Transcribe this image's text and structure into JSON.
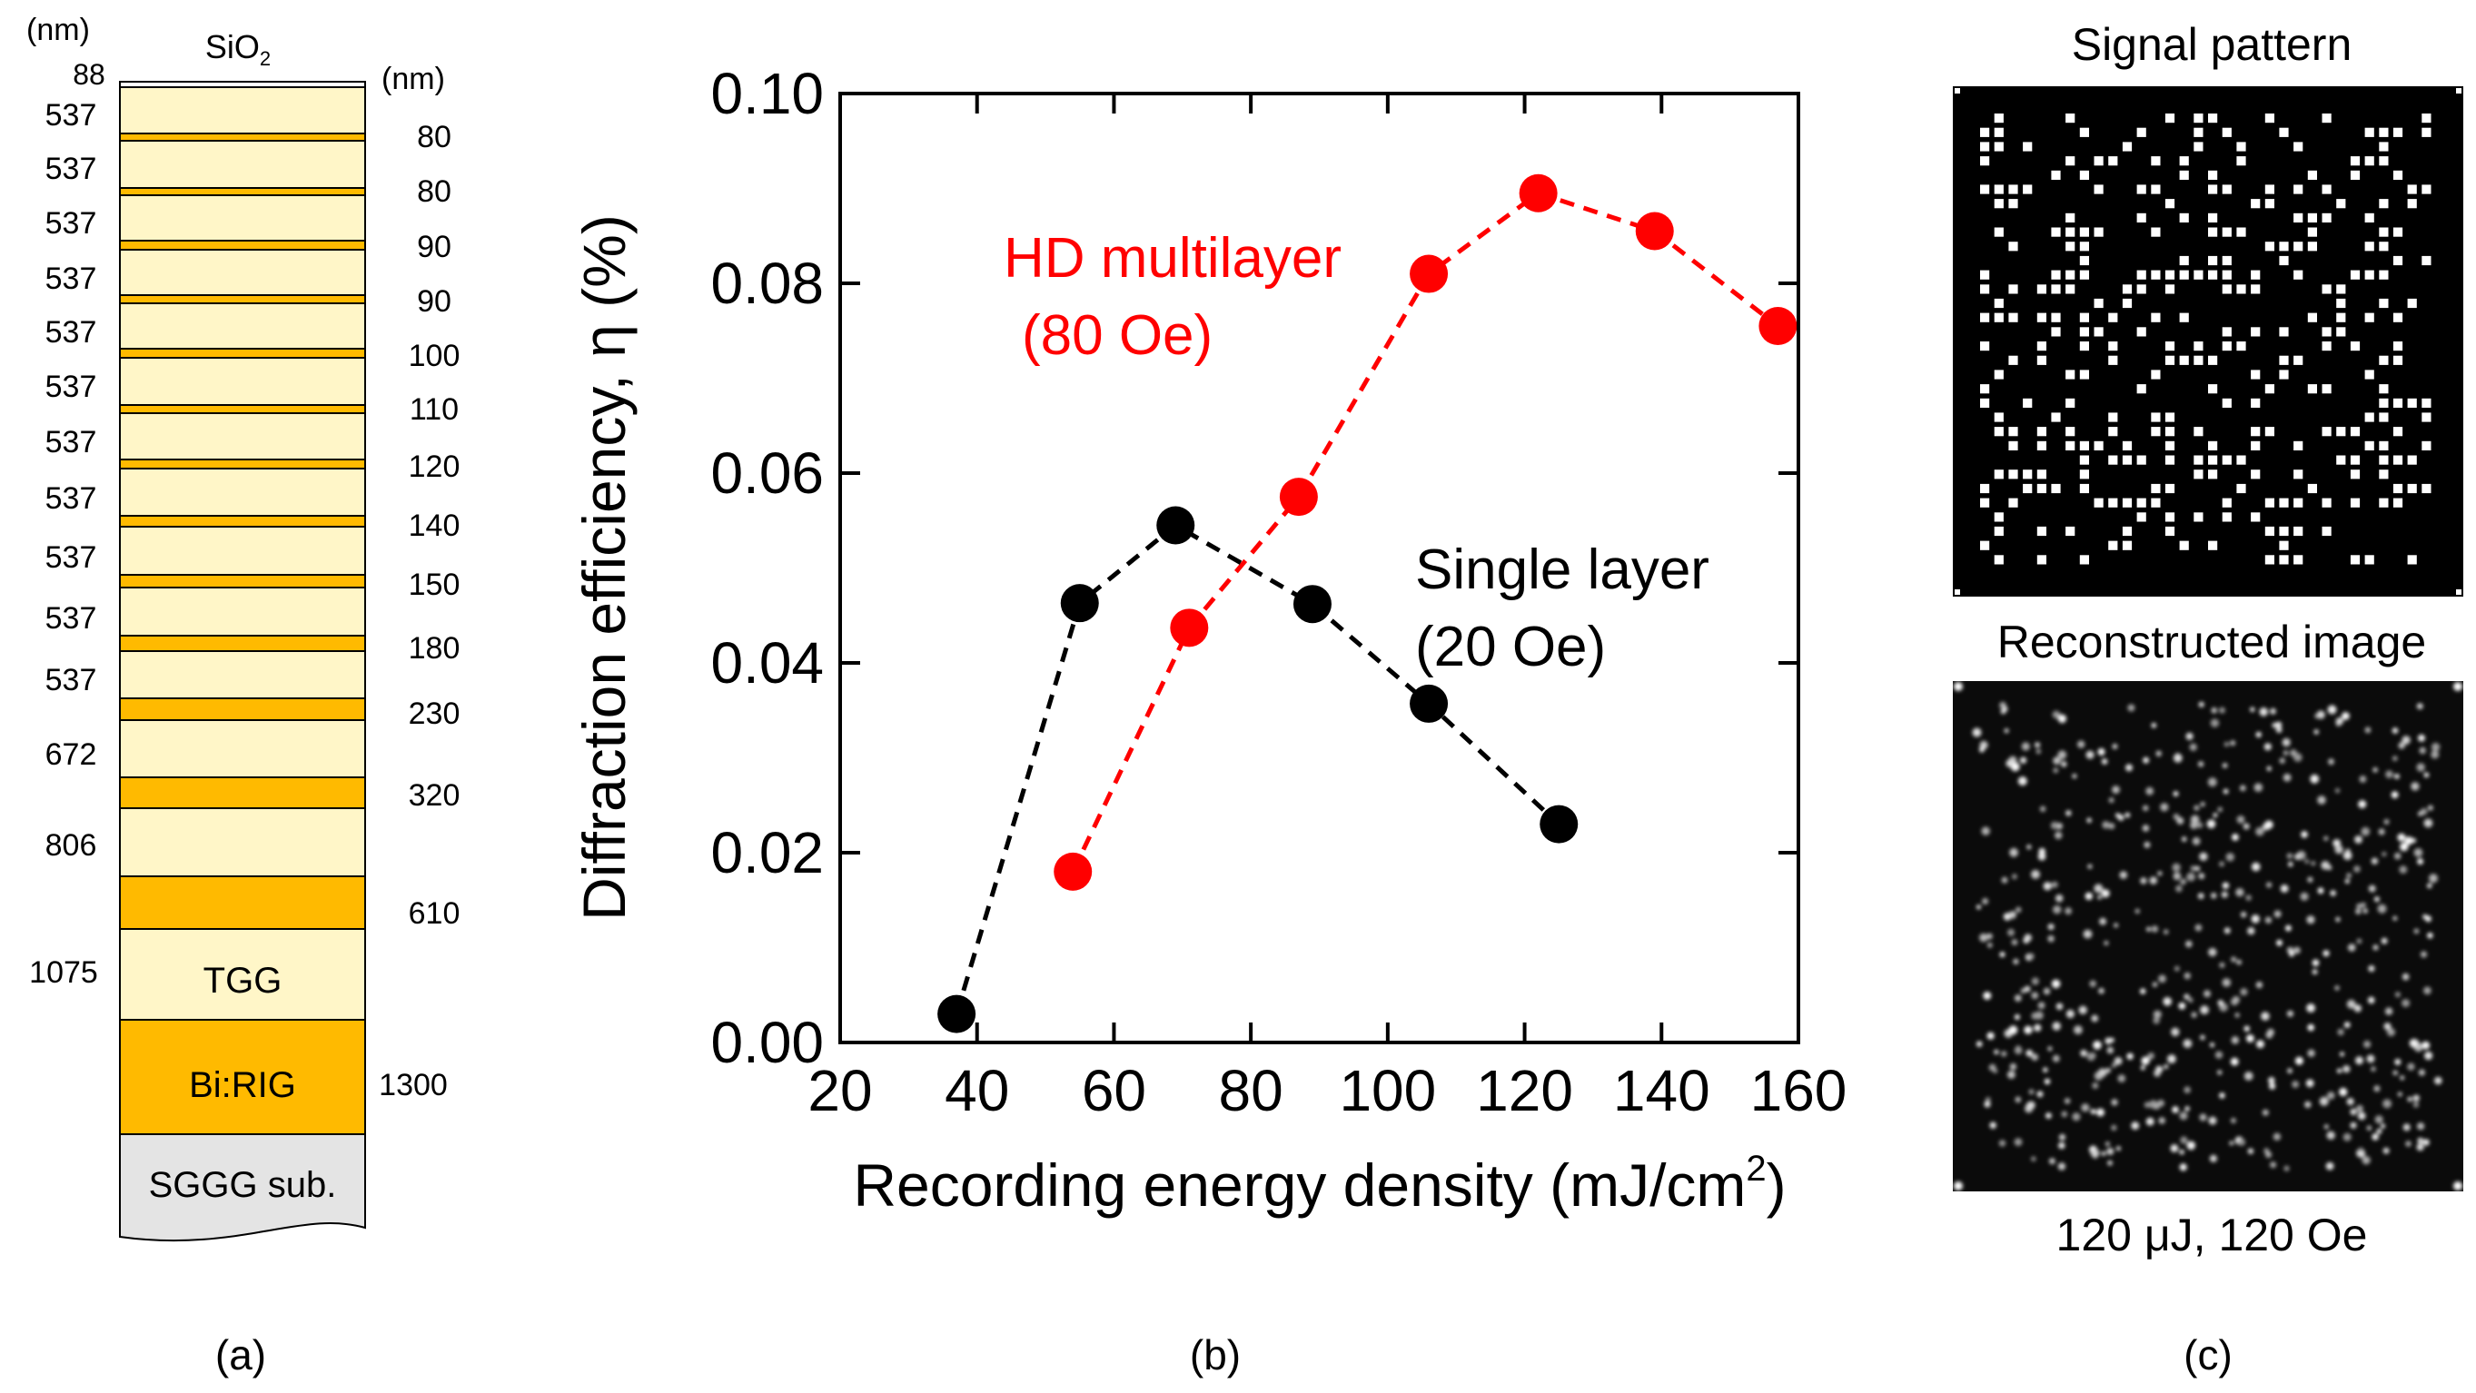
{
  "panel_a": {
    "left_unit": "(nm)",
    "right_unit": "(nm)",
    "top_layer": "SiO",
    "top_layer_sub": "2",
    "top_thickness": "88",
    "stack": [
      {
        "tgg": "537",
        "big": "80"
      },
      {
        "tgg": "537",
        "big": "80"
      },
      {
        "tgg": "537",
        "big": "90"
      },
      {
        "tgg": "537",
        "big": "90"
      },
      {
        "tgg": "537",
        "big": "100"
      },
      {
        "tgg": "537",
        "big": "110"
      },
      {
        "tgg": "537",
        "big": "120"
      },
      {
        "tgg": "537",
        "big": "140"
      },
      {
        "tgg": "537",
        "big": "150"
      },
      {
        "tgg": "537",
        "big": "180"
      },
      {
        "tgg": "537",
        "big": "230"
      },
      {
        "tgg": "672",
        "big": "320"
      },
      {
        "tgg": "806",
        "big": "610"
      }
    ],
    "tgg_label": "TGG",
    "tgg_thickness": "1075",
    "rig_label": "Bi:RIG",
    "rig_thickness": "1300",
    "substrate_label": "SGGG sub.",
    "caption": "(a)",
    "colors": {
      "tgg": "#fff6c8",
      "rig": "#ffba00",
      "substrate": "#e4e4e4"
    }
  },
  "chart_data": {
    "type": "scatter",
    "title": "",
    "xlabel": "Recording energy density (mJ/cm",
    "xlabel_sup": "2",
    "xlabel_end": ")",
    "ylabel": "Diffraction efficiency, η (%)",
    "xlim": [
      20,
      160
    ],
    "ylim": [
      0,
      0.1
    ],
    "xticks": [
      20,
      40,
      60,
      80,
      100,
      120,
      140,
      160
    ],
    "xtick_labels": [
      "20",
      "40",
      "60",
      "80",
      "100",
      "120",
      "140",
      "160"
    ],
    "yticks": [
      0,
      0.02,
      0.04,
      0.06,
      0.08,
      0.1
    ],
    "ytick_labels": [
      "0.00",
      "0.02",
      "0.04",
      "0.06",
      "0.08",
      "0.10"
    ],
    "grid": false,
    "series": [
      {
        "name": "HD multilayer (80 Oe)",
        "label_lines": [
          "HD multilayer",
          "(80 Oe)"
        ],
        "color": "#ff0000",
        "style": "dashed-with-markers",
        "x": [
          54,
          71,
          87,
          106,
          122,
          139,
          157
        ],
        "y": [
          0.018,
          0.0437,
          0.0575,
          0.081,
          0.0895,
          0.0855,
          0.0755
        ]
      },
      {
        "name": "Single layer (20 Oe)",
        "label_lines": [
          "Single layer",
          "(20 Oe)"
        ],
        "color": "#000000",
        "style": "dashed-with-markers",
        "x": [
          37,
          55,
          69,
          89,
          106,
          125
        ],
        "y": [
          0.003,
          0.0463,
          0.0545,
          0.0462,
          0.0357,
          0.023
        ]
      }
    ],
    "caption": "(b)"
  },
  "panel_c": {
    "signal_title": "Signal pattern",
    "recon_title": "Reconstructed image",
    "condition": "120 μJ, 120 Oe",
    "caption": "(c)"
  }
}
